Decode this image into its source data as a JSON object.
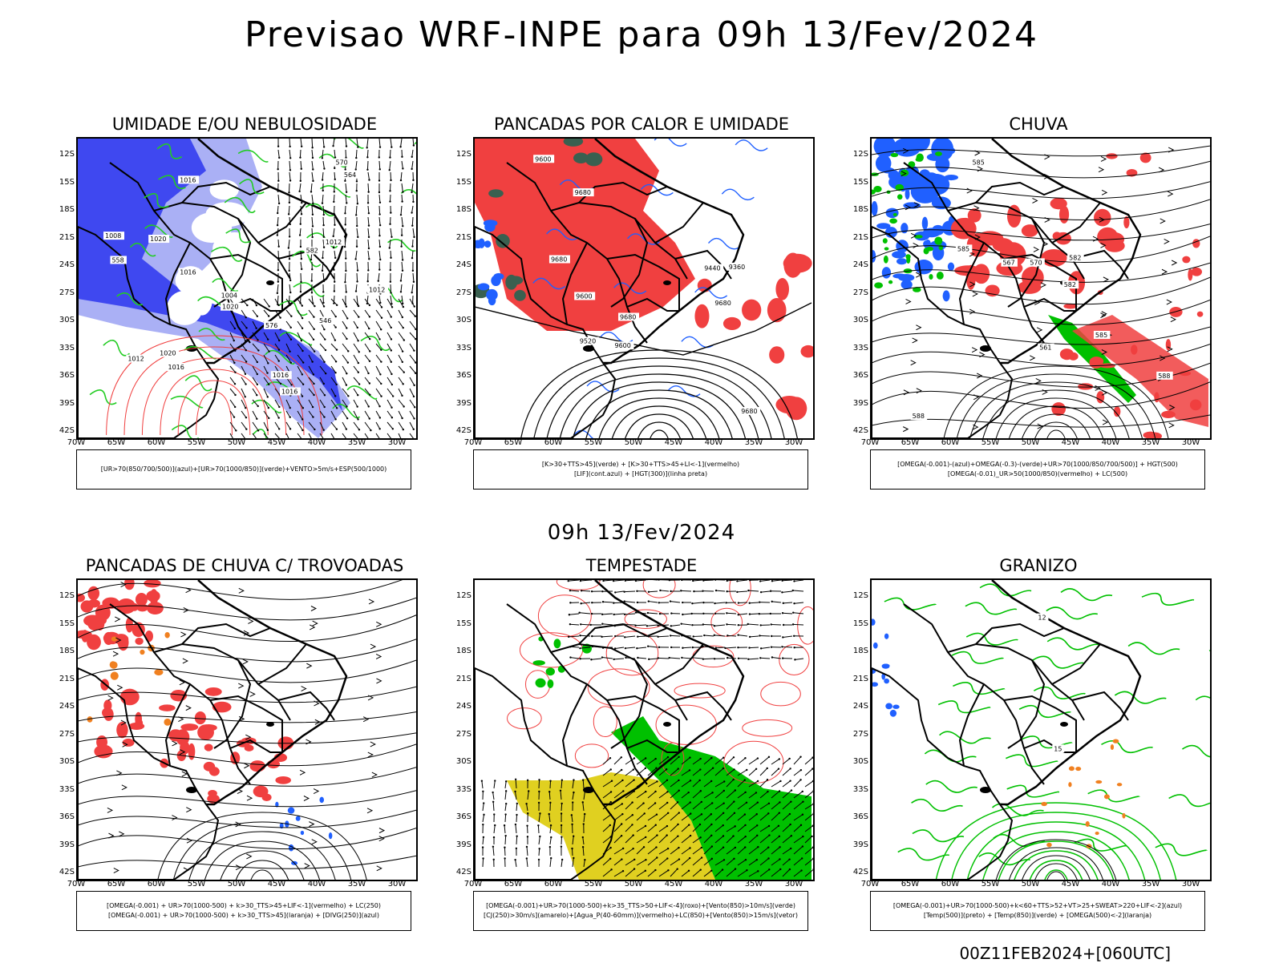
{
  "title": "Previsao WRF-INPE  para 09h 13/Fev/2024",
  "mid_date": "09h 13/Fev/2024",
  "run_info": "00Z11FEB2024+[060UTC]",
  "lat_labels": [
    "12S",
    "15S",
    "18S",
    "21S",
    "24S",
    "27S",
    "30S",
    "33S",
    "36S",
    "39S",
    "42S"
  ],
  "lon_labels": [
    "70W",
    "65W",
    "60W",
    "55W",
    "50W",
    "45W",
    "40W",
    "35W",
    "30W"
  ],
  "colors": {
    "umidade_850_700_500": "#3f48f0",
    "umidade_light": "#aab0f5",
    "umidade_1000_850": "#22cc22",
    "vermelho": "#f04040",
    "laranja": "#f08020",
    "amarelo": "#e0d020",
    "verde": "#00c000",
    "azul": "#2060ff",
    "roxo": "#9040c0",
    "verde_escuro": "#3a6050"
  },
  "panels": [
    {
      "title": "UMIDADE E/OU NEBULOSIDADE",
      "legend": [
        "[UR>70(850/700/500)](azul)+[UR>70(1000/850)](verde)+VENTO>5m/s+ESP(500/1000)"
      ],
      "contour_labels": [
        "1016",
        "1016",
        "1020",
        "1020",
        "1012",
        "1016",
        "1012",
        "1016",
        "1020",
        "1016",
        "1012",
        "1008",
        "1004",
        "576",
        "582",
        "570",
        "558",
        "564",
        "546"
      ]
    },
    {
      "title": "PANCADAS POR CALOR E UMIDADE",
      "legend": [
        "[K>30+TTS>45](verde) + [K>30+TTS>45+LI<-1](vermelho)",
        "[LIF](cont.azul) + [HGT(300)](linha preta)"
      ],
      "contour_labels": [
        "9680",
        "9680",
        "9600",
        "9680",
        "9680",
        "9680",
        "9600",
        "9600",
        "9520",
        "9440",
        "9360"
      ]
    },
    {
      "title": "CHUVA",
      "legend": [
        "[OMEGA(-0.001)-(azul)+OMEGA(-0.3)-(verde)+UR>70(1000/850/700/500)] + HGT(500)",
        "[OMEGA(-0.01)_UR>50(1000/850)(vermelho) + LC(500)"
      ],
      "contour_labels": [
        "588",
        "588",
        "585",
        "585",
        "585",
        "582",
        "582",
        "570",
        "567",
        "561"
      ]
    },
    {
      "title": "PANCADAS DE CHUVA C/ TROVOADAS",
      "legend": [
        "[OMEGA(-0.001) + UR>70(1000-500) + k>30_TTS>45+LIF<-1](vermelho) + LC(250)",
        "[OMEGA(-0.001) + UR>70(1000-500) + k>30_TTS>45](laranja) + [DIVG(250)](azul)"
      ],
      "contour_labels": []
    },
    {
      "title": "TEMPESTADE",
      "legend": [
        "[OMEGA(-0.001)+UR>70(1000-500)+k>35_TTS>50+LIF<-4](roxo)+[Vento(850)>10m/s](verde)",
        "[CJ(250)>30m/s](amarelo)+[Agua_P(40-60mm)](vermelho)+LC(850)+[Vento(850)>15m/s](vetor)"
      ],
      "contour_labels": []
    },
    {
      "title": "GRANIZO",
      "legend": [
        "[OMEGA(-0.001)+UR>70(1000-500)+k<60+TTS>52+VT>25+SWEAT>220+LIF<-2](azul)",
        "[Temp(500)](preto) + [Temp(850)](verde) + [OMEGA(500)<-2](laranja)"
      ],
      "contour_labels": [
        "12",
        "15"
      ]
    }
  ]
}
